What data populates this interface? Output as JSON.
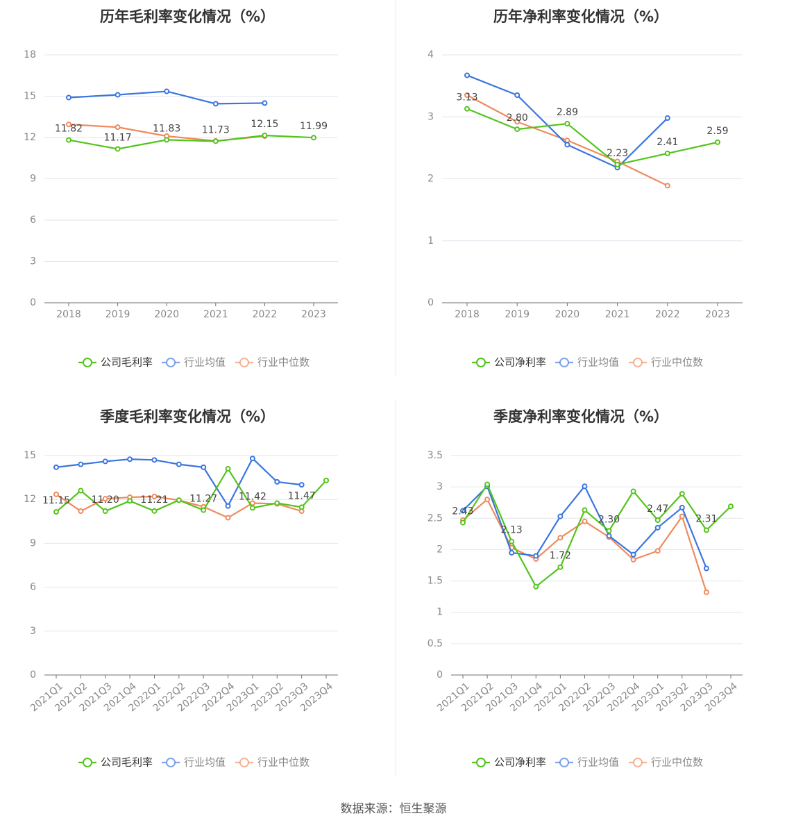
{
  "colors": {
    "company": "#52c41a",
    "avg": "#3a75e0",
    "median": "#f08a5d"
  },
  "source": "数据来源：恒生聚源",
  "chart_data": [
    {
      "type": "line",
      "title": "历年毛利率变化情况（%）",
      "categories": [
        "2018",
        "2019",
        "2020",
        "2021",
        "2022",
        "2023"
      ],
      "ylim": [
        0,
        18
      ],
      "yticks": [
        "0",
        "3",
        "6",
        "9",
        "12",
        "15",
        "18"
      ],
      "grid": true,
      "legend_position": "bottom",
      "series": [
        {
          "name": "公司毛利率",
          "role": "company",
          "values": [
            11.82,
            11.17,
            11.83,
            11.73,
            12.15,
            11.99
          ],
          "labels": [
            "11.82",
            "11.17",
            "11.83",
            "11.73",
            "12.15",
            "11.99"
          ]
        },
        {
          "name": "行业均值",
          "role": "avg",
          "values": [
            14.9,
            15.1,
            15.35,
            14.45,
            14.5,
            null
          ]
        },
        {
          "name": "行业中位数",
          "role": "median",
          "values": [
            12.95,
            12.75,
            12.1,
            11.75,
            12.1,
            null
          ]
        }
      ]
    },
    {
      "type": "line",
      "title": "历年净利率变化情况（%）",
      "categories": [
        "2018",
        "2019",
        "2020",
        "2021",
        "2022",
        "2023"
      ],
      "ylim": [
        0,
        4
      ],
      "yticks": [
        "0",
        "1",
        "2",
        "3",
        "4"
      ],
      "grid": true,
      "legend_position": "bottom",
      "series": [
        {
          "name": "公司净利率",
          "role": "company",
          "values": [
            3.13,
            2.8,
            2.89,
            2.23,
            2.41,
            2.59
          ],
          "labels": [
            "3.13",
            "2.80",
            "2.89",
            "2.23",
            "2.41",
            "2.59"
          ]
        },
        {
          "name": "行业均值",
          "role": "avg",
          "values": [
            3.67,
            3.35,
            2.55,
            2.18,
            2.98,
            null
          ]
        },
        {
          "name": "行业中位数",
          "role": "median",
          "values": [
            3.35,
            2.92,
            2.62,
            2.28,
            1.89,
            null
          ]
        }
      ]
    },
    {
      "type": "line",
      "title": "季度毛利率变化情况（%）",
      "categories": [
        "2021Q1",
        "2021Q2",
        "2021Q3",
        "2021Q4",
        "2022Q1",
        "2022Q2",
        "2022Q3",
        "2022Q4",
        "2023Q1",
        "2023Q2",
        "2023Q3",
        "2023Q4"
      ],
      "ylim": [
        0,
        15
      ],
      "yticks": [
        "0",
        "3",
        "6",
        "9",
        "12",
        "15"
      ],
      "grid": true,
      "rotate_x_labels": true,
      "legend_position": "bottom",
      "series": [
        {
          "name": "公司毛利率",
          "role": "company",
          "values": [
            11.15,
            12.6,
            11.2,
            11.9,
            11.21,
            11.95,
            11.27,
            14.1,
            11.42,
            11.75,
            11.47,
            13.3
          ],
          "labels": [
            "11.15",
            "",
            "11.20",
            "",
            "11.21",
            "",
            "11.27",
            "",
            "11.42",
            "",
            "11.47",
            ""
          ]
        },
        {
          "name": "行业均值",
          "role": "avg",
          "values": [
            14.2,
            14.4,
            14.6,
            14.75,
            14.7,
            14.4,
            14.2,
            11.55,
            14.8,
            13.2,
            13.0,
            null
          ]
        },
        {
          "name": "行业中位数",
          "role": "median",
          "values": [
            12.35,
            11.2,
            12.05,
            12.15,
            12.2,
            11.95,
            11.5,
            10.75,
            11.75,
            11.7,
            11.2,
            null
          ]
        }
      ]
    },
    {
      "type": "line",
      "title": "季度净利率变化情况（%）",
      "categories": [
        "2021Q1",
        "2021Q2",
        "2021Q3",
        "2021Q4",
        "2022Q1",
        "2022Q2",
        "2022Q3",
        "2022Q4",
        "2023Q1",
        "2023Q2",
        "2023Q3",
        "2023Q4"
      ],
      "ylim": [
        0,
        3.5
      ],
      "yticks": [
        "0",
        "0.5",
        "1",
        "1.5",
        "2",
        "2.5",
        "3",
        "3.5"
      ],
      "grid": true,
      "rotate_x_labels": true,
      "legend_position": "bottom",
      "series": [
        {
          "name": "公司净利率",
          "role": "company",
          "values": [
            2.43,
            3.04,
            2.13,
            1.41,
            1.72,
            2.63,
            2.3,
            2.93,
            2.47,
            2.89,
            2.31,
            2.69
          ],
          "labels": [
            "2.43",
            "",
            "2.13",
            "",
            "1.72",
            "",
            "2.30",
            "",
            "2.47",
            "",
            "2.31",
            ""
          ]
        },
        {
          "name": "行业均值",
          "role": "avg",
          "values": [
            2.62,
            3.01,
            1.95,
            1.9,
            2.53,
            3.01,
            2.22,
            1.92,
            2.35,
            2.67,
            1.7,
            null
          ]
        },
        {
          "name": "行业中位数",
          "role": "median",
          "values": [
            2.47,
            2.8,
            2.03,
            1.85,
            2.19,
            2.45,
            2.2,
            1.84,
            1.98,
            2.53,
            1.32,
            null
          ]
        }
      ]
    }
  ]
}
